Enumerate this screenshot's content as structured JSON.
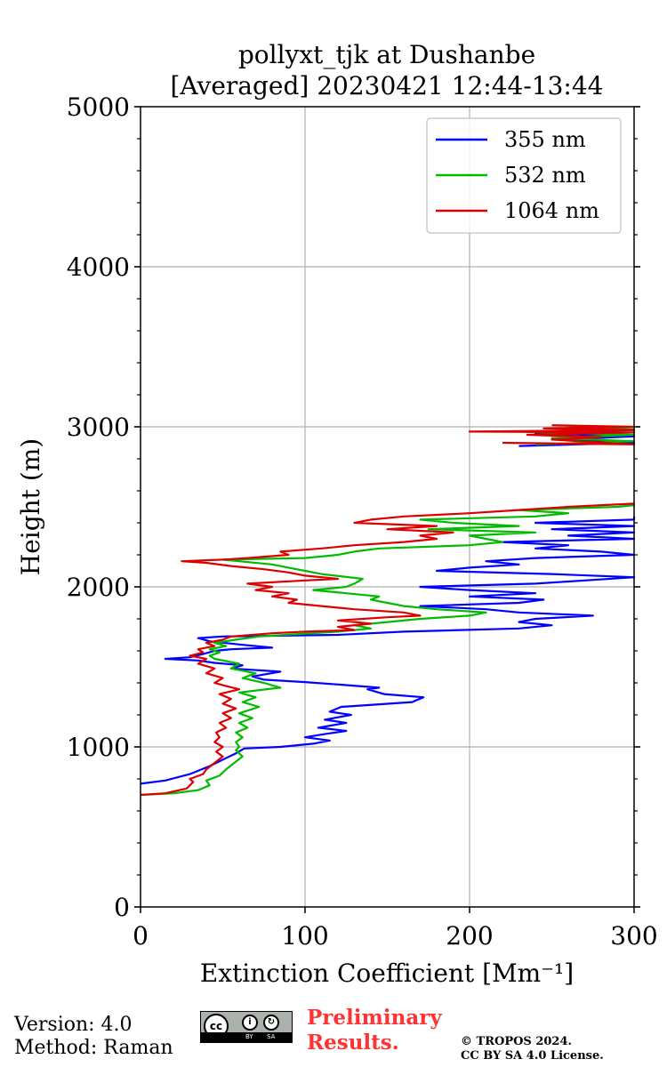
{
  "chart_data": {
    "type": "line",
    "title": [
      "pollyxt_tjk at Dushanbe",
      "[Averaged] 20230421 12:44-13:44"
    ],
    "xlabel": "Extinction Coefficient [Mm⁻¹]",
    "ylabel": "Height (m)",
    "xlim": [
      0,
      300
    ],
    "ylim": [
      0,
      5000
    ],
    "xticks": [
      0,
      100,
      200,
      300
    ],
    "xtick_labels": [
      "0",
      "100",
      "200",
      "300"
    ],
    "yticks": [
      0,
      1000,
      2000,
      3000,
      4000,
      5000
    ],
    "ytick_labels": [
      "0",
      "1000",
      "2000",
      "3000",
      "4000",
      "5000"
    ],
    "grid": true,
    "legend_position": "top-right",
    "series": [
      {
        "name": "355 nm",
        "color": "#0000ff",
        "points": [
          [
            0,
            770
          ],
          [
            15,
            790
          ],
          [
            30,
            830
          ],
          [
            42,
            880
          ],
          [
            50,
            920
          ],
          [
            58,
            960
          ],
          [
            63,
            990
          ],
          [
            85,
            1000
          ],
          [
            105,
            1020
          ],
          [
            115,
            1040
          ],
          [
            100,
            1060
          ],
          [
            112,
            1080
          ],
          [
            125,
            1100
          ],
          [
            108,
            1120
          ],
          [
            125,
            1150
          ],
          [
            112,
            1170
          ],
          [
            128,
            1200
          ],
          [
            115,
            1220
          ],
          [
            122,
            1250
          ],
          [
            165,
            1280
          ],
          [
            172,
            1310
          ],
          [
            148,
            1330
          ],
          [
            138,
            1360
          ],
          [
            145,
            1370
          ],
          [
            120,
            1390
          ],
          [
            100,
            1405
          ],
          [
            75,
            1420
          ],
          [
            68,
            1440
          ],
          [
            85,
            1470
          ],
          [
            55,
            1490
          ],
          [
            62,
            1510
          ],
          [
            45,
            1525
          ],
          [
            35,
            1540
          ],
          [
            15,
            1550
          ],
          [
            30,
            1560
          ],
          [
            38,
            1580
          ],
          [
            45,
            1600
          ],
          [
            55,
            1610
          ],
          [
            80,
            1620
          ],
          [
            60,
            1640
          ],
          [
            42,
            1660
          ],
          [
            35,
            1680
          ],
          [
            50,
            1690
          ],
          [
            120,
            1700
          ],
          [
            160,
            1720
          ],
          [
            230,
            1740
          ],
          [
            250,
            1760
          ],
          [
            230,
            1780
          ],
          [
            240,
            1800
          ],
          [
            275,
            1820
          ],
          [
            230,
            1840
          ],
          [
            210,
            1860
          ],
          [
            170,
            1880
          ],
          [
            230,
            1900
          ],
          [
            245,
            1920
          ],
          [
            200,
            1940
          ],
          [
            240,
            1960
          ],
          [
            200,
            1980
          ],
          [
            170,
            2000
          ],
          [
            240,
            2020
          ],
          [
            270,
            2040
          ],
          [
            300,
            2060
          ],
          [
            250,
            2080
          ],
          [
            180,
            2100
          ],
          [
            200,
            2120
          ],
          [
            230,
            2140
          ],
          [
            210,
            2160
          ],
          [
            240,
            2180
          ],
          [
            300,
            2200
          ],
          [
            280,
            2220
          ],
          [
            240,
            2240
          ],
          [
            260,
            2260
          ],
          [
            220,
            2280
          ],
          [
            300,
            2300
          ],
          [
            260,
            2320
          ],
          [
            300,
            2340
          ],
          [
            250,
            2360
          ],
          [
            300,
            2380
          ],
          [
            240,
            2400
          ],
          [
            300,
            2420
          ],
          [
            300,
            2440
          ]
        ]
      },
      {
        "name": "532 nm",
        "color": "#00bb00",
        "points": [
          [
            0,
            700
          ],
          [
            20,
            710
          ],
          [
            35,
            730
          ],
          [
            42,
            760
          ],
          [
            40,
            790
          ],
          [
            48,
            820
          ],
          [
            52,
            860
          ],
          [
            57,
            900
          ],
          [
            62,
            940
          ],
          [
            58,
            980
          ],
          [
            60,
            1000
          ],
          [
            58,
            1030
          ],
          [
            62,
            1060
          ],
          [
            58,
            1090
          ],
          [
            65,
            1120
          ],
          [
            60,
            1150
          ],
          [
            68,
            1180
          ],
          [
            60,
            1210
          ],
          [
            72,
            1250
          ],
          [
            62,
            1280
          ],
          [
            70,
            1310
          ],
          [
            60,
            1340
          ],
          [
            85,
            1370
          ],
          [
            75,
            1400
          ],
          [
            62,
            1430
          ],
          [
            70,
            1460
          ],
          [
            55,
            1490
          ],
          [
            60,
            1520
          ],
          [
            45,
            1550
          ],
          [
            42,
            1570
          ],
          [
            48,
            1590
          ],
          [
            42,
            1610
          ],
          [
            52,
            1630
          ],
          [
            45,
            1650
          ],
          [
            58,
            1670
          ],
          [
            72,
            1690
          ],
          [
            120,
            1720
          ],
          [
            140,
            1740
          ],
          [
            130,
            1760
          ],
          [
            150,
            1780
          ],
          [
            170,
            1800
          ],
          [
            200,
            1820
          ],
          [
            210,
            1840
          ],
          [
            180,
            1860
          ],
          [
            160,
            1880
          ],
          [
            150,
            1900
          ],
          [
            140,
            1920
          ],
          [
            145,
            1940
          ],
          [
            125,
            1960
          ],
          [
            105,
            1980
          ],
          [
            125,
            2000
          ],
          [
            130,
            2020
          ],
          [
            135,
            2050
          ],
          [
            110,
            2080
          ],
          [
            100,
            2100
          ],
          [
            90,
            2120
          ],
          [
            80,
            2140
          ],
          [
            60,
            2160
          ],
          [
            50,
            2170
          ],
          [
            100,
            2180
          ],
          [
            120,
            2200
          ],
          [
            130,
            2220
          ],
          [
            145,
            2240
          ],
          [
            200,
            2260
          ],
          [
            220,
            2280
          ],
          [
            210,
            2300
          ],
          [
            200,
            2320
          ],
          [
            240,
            2340
          ],
          [
            175,
            2360
          ],
          [
            230,
            2380
          ],
          [
            190,
            2400
          ],
          [
            170,
            2420
          ],
          [
            240,
            2440
          ],
          [
            260,
            2460
          ],
          [
            230,
            2480
          ],
          [
            290,
            2500
          ],
          [
            300,
            2510
          ]
        ]
      },
      {
        "name": "1064 nm",
        "color": "#dd0000",
        "points": [
          [
            0,
            700
          ],
          [
            15,
            710
          ],
          [
            28,
            740
          ],
          [
            32,
            780
          ],
          [
            30,
            800
          ],
          [
            38,
            830
          ],
          [
            40,
            860
          ],
          [
            45,
            900
          ],
          [
            50,
            940
          ],
          [
            46,
            970
          ],
          [
            50,
            1000
          ],
          [
            45,
            1030
          ],
          [
            48,
            1060
          ],
          [
            46,
            1090
          ],
          [
            52,
            1120
          ],
          [
            48,
            1150
          ],
          [
            55,
            1180
          ],
          [
            50,
            1210
          ],
          [
            58,
            1240
          ],
          [
            50,
            1270
          ],
          [
            55,
            1300
          ],
          [
            48,
            1330
          ],
          [
            60,
            1360
          ],
          [
            52,
            1380
          ],
          [
            45,
            1400
          ],
          [
            50,
            1430
          ],
          [
            40,
            1460
          ],
          [
            45,
            1490
          ],
          [
            35,
            1520
          ],
          [
            40,
            1550
          ],
          [
            30,
            1570
          ],
          [
            38,
            1590
          ],
          [
            35,
            1610
          ],
          [
            45,
            1630
          ],
          [
            40,
            1650
          ],
          [
            50,
            1670
          ],
          [
            55,
            1690
          ],
          [
            80,
            1710
          ],
          [
            100,
            1720
          ],
          [
            130,
            1730
          ],
          [
            120,
            1750
          ],
          [
            140,
            1770
          ],
          [
            120,
            1790
          ],
          [
            150,
            1810
          ],
          [
            170,
            1820
          ],
          [
            160,
            1840
          ],
          [
            130,
            1860
          ],
          [
            110,
            1880
          ],
          [
            90,
            1900
          ],
          [
            95,
            1920
          ],
          [
            80,
            1940
          ],
          [
            90,
            1960
          ],
          [
            70,
            1980
          ],
          [
            80,
            2000
          ],
          [
            65,
            2020
          ],
          [
            100,
            2040
          ],
          [
            120,
            2050
          ],
          [
            100,
            2070
          ],
          [
            90,
            2090
          ],
          [
            75,
            2110
          ],
          [
            55,
            2130
          ],
          [
            40,
            2150
          ],
          [
            25,
            2160
          ],
          [
            50,
            2170
          ],
          [
            65,
            2180
          ],
          [
            90,
            2200
          ],
          [
            85,
            2220
          ],
          [
            110,
            2240
          ],
          [
            130,
            2260
          ],
          [
            160,
            2280
          ],
          [
            180,
            2300
          ],
          [
            170,
            2320
          ],
          [
            190,
            2340
          ],
          [
            150,
            2360
          ],
          [
            180,
            2380
          ],
          [
            130,
            2400
          ],
          [
            140,
            2420
          ],
          [
            160,
            2440
          ],
          [
            200,
            2460
          ],
          [
            230,
            2480
          ],
          [
            260,
            2500
          ],
          [
            300,
            2520
          ]
        ]
      },
      {
        "name": "355 nm",
        "color": "#0000ff",
        "points": [
          [
            230,
            2880
          ],
          [
            300,
            2900
          ],
          [
            255,
            2920
          ],
          [
            300,
            2940
          ],
          [
            240,
            2960
          ],
          [
            300,
            2980
          ],
          [
            270,
            3000
          ]
        ]
      },
      {
        "name": "532 nm",
        "color": "#00bb00",
        "points": [
          [
            240,
            2890
          ],
          [
            300,
            2910
          ],
          [
            250,
            2930
          ],
          [
            300,
            2950
          ],
          [
            230,
            2970
          ],
          [
            300,
            2985
          ],
          [
            260,
            3000
          ]
        ]
      },
      {
        "name": "1064 nm",
        "color": "#dd0000",
        "points": [
          [
            220,
            2900
          ],
          [
            300,
            2890
          ],
          [
            250,
            2920
          ],
          [
            280,
            2935
          ],
          [
            235,
            2950
          ],
          [
            300,
            2965
          ],
          [
            200,
            2970
          ],
          [
            300,
            2980
          ],
          [
            245,
            2990
          ],
          [
            300,
            3000
          ],
          [
            250,
            3010
          ]
        ]
      }
    ],
    "legend": [
      {
        "label": "355 nm",
        "color": "#0000ff"
      },
      {
        "label": "532 nm",
        "color": "#00bb00"
      },
      {
        "label": "1064 nm",
        "color": "#dd0000"
      }
    ]
  },
  "footer": {
    "version": "Version: 4.0",
    "method": "Method: Raman",
    "preliminary_line1": "Preliminary",
    "preliminary_line2": "Results.",
    "copyright_line1": "© TROPOS 2024.",
    "copyright_line2": "CC BY SA 4.0 License.",
    "license_badge": {
      "cc": "cc",
      "by": "BY",
      "sa": "SA"
    },
    "preliminary_color": "#ff3333"
  }
}
